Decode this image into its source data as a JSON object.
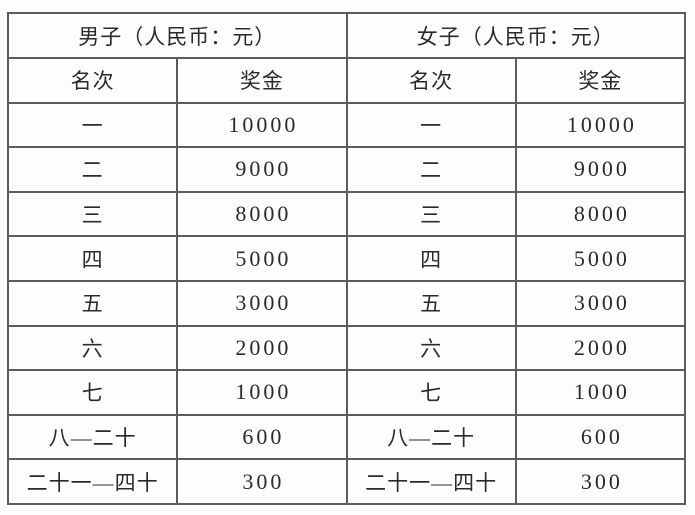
{
  "table": {
    "border_color": "#5c5c5c",
    "text_color": "#2a2a2a",
    "background_color": "#fdfdfd",
    "sections": [
      {
        "title": "男子（人民币：元）",
        "col_headers": [
          "名次",
          "奖金"
        ],
        "rows": [
          [
            "一",
            "10000"
          ],
          [
            "二",
            "9000"
          ],
          [
            "三",
            "8000"
          ],
          [
            "四",
            "5000"
          ],
          [
            "五",
            "3000"
          ],
          [
            "六",
            "2000"
          ],
          [
            "七",
            "1000"
          ],
          [
            "八—二十",
            "600"
          ],
          [
            "二十一—四十",
            "300"
          ]
        ]
      },
      {
        "title": "女子（人民币：元）",
        "col_headers": [
          "名次",
          "奖金"
        ],
        "rows": [
          [
            "一",
            "10000"
          ],
          [
            "二",
            "9000"
          ],
          [
            "三",
            "8000"
          ],
          [
            "四",
            "5000"
          ],
          [
            "五",
            "3000"
          ],
          [
            "六",
            "2000"
          ],
          [
            "七",
            "1000"
          ],
          [
            "八—二十",
            "600"
          ],
          [
            "二十一—四十",
            "300"
          ]
        ]
      }
    ]
  }
}
